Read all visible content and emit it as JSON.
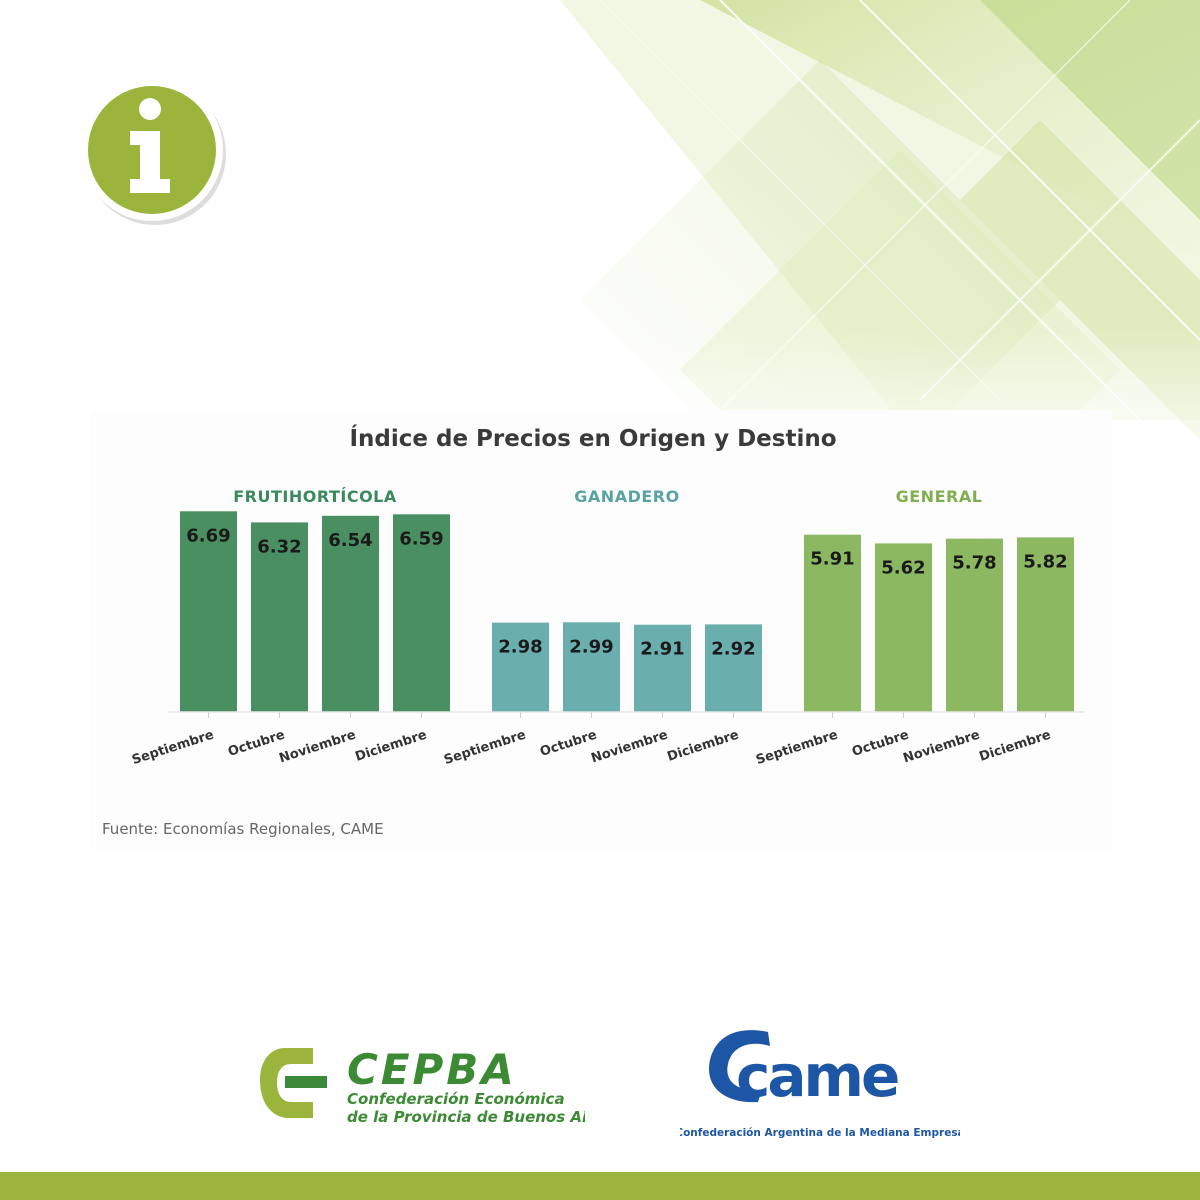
{
  "colors": {
    "frutihorticola": "#4a8f62",
    "ganadero": "#6aaeae",
    "general": "#8cb862",
    "frutihorticola_title": "#3a8a5e",
    "ganadero_title": "#5aa3a3",
    "general_title": "#7fb050",
    "accent_green": "#9bb53c",
    "came_blue": "#1e56a6"
  },
  "badge": {
    "glyph": "i",
    "icon": "info-icon"
  },
  "chart_data": {
    "type": "bar",
    "title": "Índice de Precios en Origen y Destino",
    "groups": [
      {
        "name": "FRUTIHORTÍCOLA",
        "categories": [
          "Septiembre",
          "Octubre",
          "Noviembre",
          "Diciembre"
        ],
        "values": [
          6.69,
          6.32,
          6.54,
          6.59
        ]
      },
      {
        "name": "GANADERO",
        "categories": [
          "Septiembre",
          "Octubre",
          "Noviembre",
          "Diciembre"
        ],
        "values": [
          2.98,
          2.99,
          2.91,
          2.92
        ]
      },
      {
        "name": "GENERAL",
        "categories": [
          "Septiembre",
          "Octubre",
          "Noviembre",
          "Diciembre"
        ],
        "values": [
          5.91,
          5.62,
          5.78,
          5.82
        ]
      }
    ],
    "value_labels": [
      "6.69",
      "6.32",
      "6.54",
      "6.59",
      "2.98",
      "2.99",
      "2.91",
      "2.92",
      "5.91",
      "5.62",
      "5.78",
      "5.82"
    ],
    "ylim": [
      0,
      7
    ],
    "grid": false,
    "source": "Fuente: Economías Regionales, CAME"
  },
  "logos": {
    "cepba": {
      "name": "CEPBA",
      "line1": "Confederación Económica",
      "line2": "de la Provincia de Buenos Aires"
    },
    "came": {
      "name": "came",
      "subtitle": "Confederación Argentina de la Mediana Empresa"
    }
  }
}
